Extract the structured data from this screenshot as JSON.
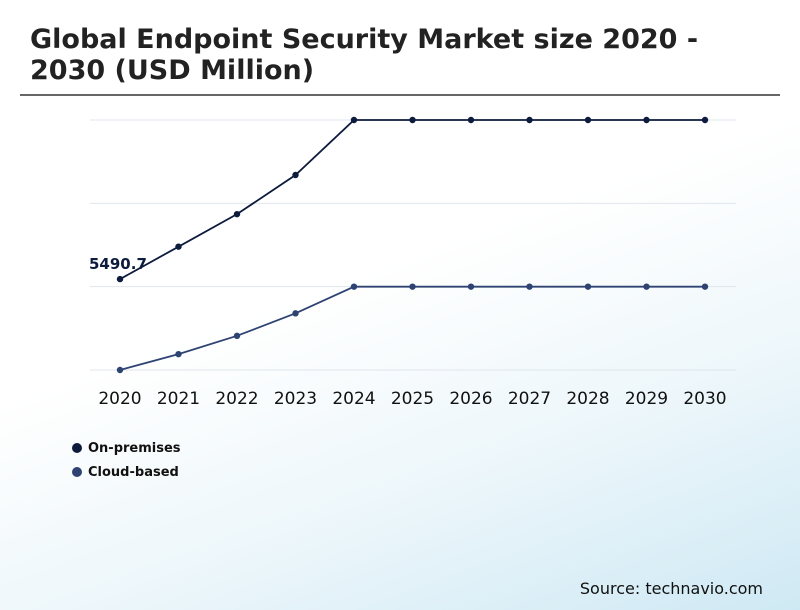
{
  "page": {
    "title": "Global Endpoint Security Market size 2020 - 2030 (USD Million)",
    "source": "Source: technavio.com"
  },
  "chart_data": {
    "type": "line",
    "title": "Global Endpoint Security Market size 2020 - 2030 (USD Million)",
    "xlabel": "",
    "ylabel": "",
    "categories": [
      "2020",
      "2021",
      "2022",
      "2023",
      "2024",
      "2025",
      "2026",
      "2027",
      "2028",
      "2029",
      "2030"
    ],
    "series": [
      {
        "name": "On-premises",
        "color": "#0d1b3d",
        "values": [
          5490.7,
          5880,
          6270,
          6740,
          7400,
          7400,
          7400,
          7400,
          7400,
          7400,
          7400
        ]
      },
      {
        "name": "Cloud-based",
        "color": "#2e4372",
        "values": [
          4400,
          4590,
          4810,
          5080,
          5400,
          5400,
          5400,
          5400,
          5400,
          5400,
          5400
        ]
      }
    ],
    "annotations": [
      {
        "series": 0,
        "index": 0,
        "text": "5490.7"
      }
    ],
    "ylim": [
      4400,
      7400
    ],
    "gridlines": [
      4400,
      5400,
      6400,
      7400
    ],
    "grid": true,
    "y_tick_labels_visible": false,
    "legend_position": "bottom-left"
  }
}
